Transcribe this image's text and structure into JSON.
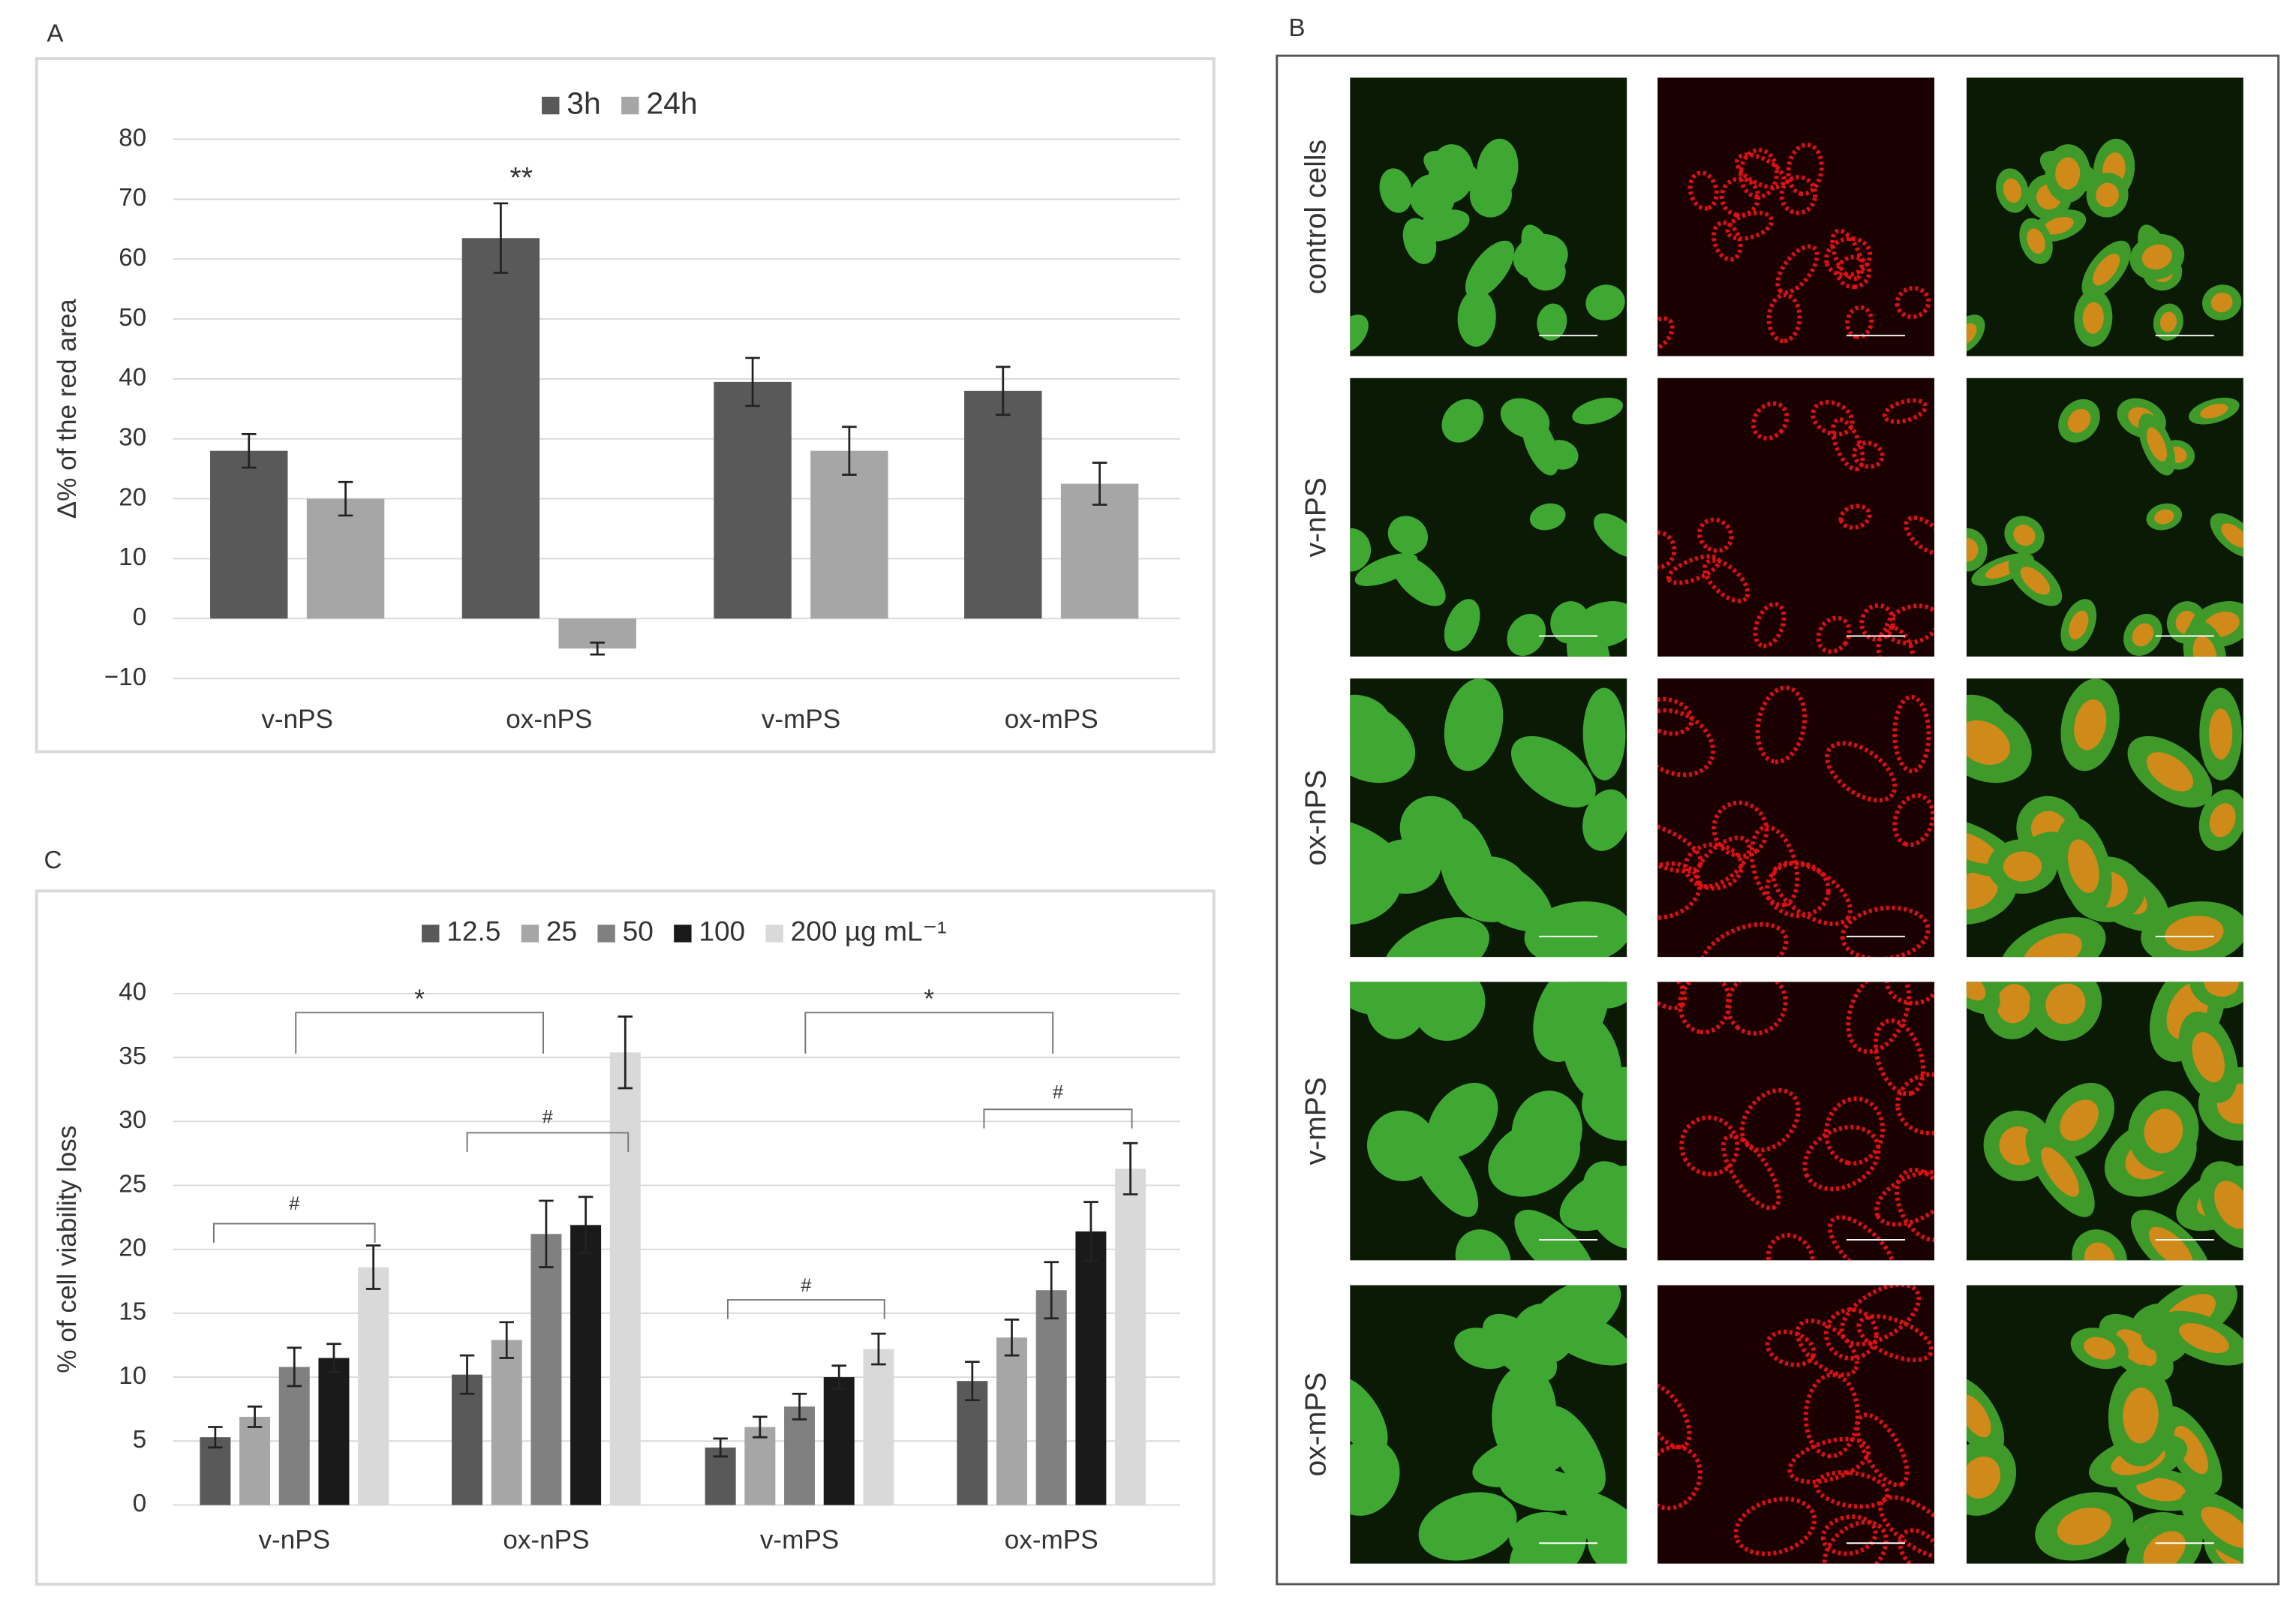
{
  "panels": {
    "a": "A",
    "b": "B",
    "c": "C"
  },
  "micrographs": {
    "rows": [
      "control cells",
      "v-nPS",
      "ox-nPS",
      "v-mPS",
      "ox-mPS"
    ]
  },
  "chart_data": [
    {
      "type": "bar",
      "ylabel": "Δ% of the red area",
      "categories": [
        "v-nPS",
        "ox-nPS",
        "v-mPS",
        "ox-mPS"
      ],
      "series": [
        {
          "name": "3h",
          "color": "#595959",
          "values": [
            28,
            63.5,
            39.5,
            38
          ],
          "errors": [
            2.8,
            5.8,
            4,
            4
          ]
        },
        {
          "name": "24h",
          "color": "#a6a6a6",
          "values": [
            20,
            -5,
            28,
            22.5
          ],
          "errors": [
            2.8,
            1,
            4,
            3.5
          ]
        }
      ],
      "annotations": [
        "**"
      ],
      "ylim": [
        -10,
        80
      ],
      "yticks": [
        {
          "value": -10,
          "label": "−10"
        },
        0,
        10,
        20,
        30,
        40,
        50,
        60,
        70,
        80
      ],
      "grid": true
    },
    {
      "type": "bar",
      "ylabel": "% of cell viability loss",
      "categories": [
        "v-nPS",
        "ox-nPS",
        "v-mPS",
        "ox-mPS"
      ],
      "series": [
        {
          "name": "12.5",
          "color": "#595959",
          "values": [
            5.3,
            10.2,
            4.5,
            9.7
          ],
          "errors": [
            0.8,
            1.5,
            0.7,
            1.5
          ]
        },
        {
          "name": "25",
          "color": "#a6a6a6",
          "values": [
            6.9,
            12.9,
            6.1,
            13.1
          ],
          "errors": [
            0.8,
            1.4,
            0.8,
            1.4
          ]
        },
        {
          "name": "50",
          "color": "#808080",
          "values": [
            10.8,
            21.2,
            7.7,
            16.8
          ],
          "errors": [
            1.5,
            2.6,
            1,
            2.2
          ]
        },
        {
          "name": "100",
          "color": "#1a1a1a",
          "values": [
            11.5,
            21.9,
            10,
            21.4
          ],
          "errors": [
            1.1,
            2.2,
            0.9,
            2.3
          ]
        },
        {
          "name": "200 µg mL⁻¹",
          "color": "#d9d9d9",
          "values": [
            18.6,
            35.4,
            12.2,
            26.3
          ],
          "errors": [
            1.7,
            2.8,
            1.2,
            2.0
          ]
        }
      ],
      "annotations": [
        "*",
        "*",
        "#",
        "#",
        "#",
        "#"
      ],
      "ylim": [
        0,
        40
      ],
      "yticks": [
        0,
        5,
        10,
        15,
        20,
        25,
        30,
        35,
        40
      ],
      "grid": true
    }
  ]
}
